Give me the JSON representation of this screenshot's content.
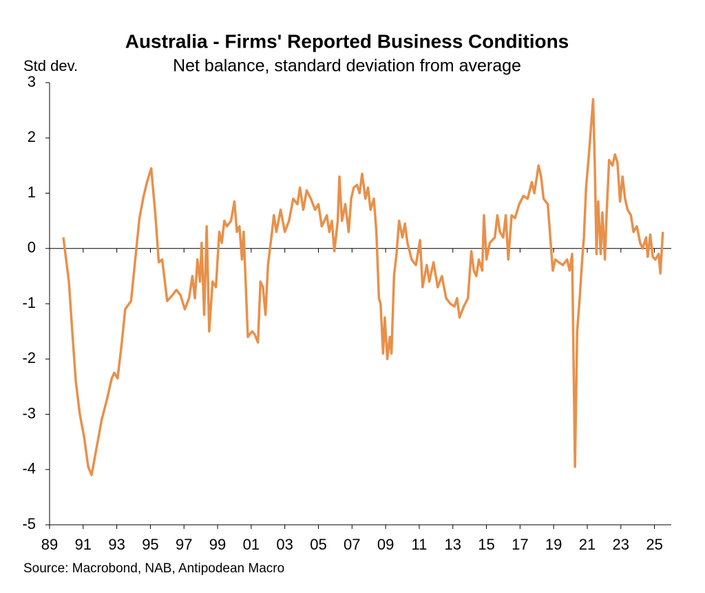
{
  "chart_data": {
    "type": "line",
    "title": "Australia - Firms' Reported Business Conditions",
    "subtitle": "Net balance, standard deviation from average",
    "y_label": "Std dev.",
    "source": "Source: Macrobond, NAB, Antipodean Macro",
    "x": [
      1989.82,
      1990.15,
      1990.35,
      1990.56,
      1990.8,
      1991.05,
      1991.3,
      1991.5,
      1991.8,
      1992.1,
      1992.4,
      1992.7,
      1992.85,
      1993.05,
      1993.3,
      1993.5,
      1993.85,
      1994.1,
      1994.35,
      1994.6,
      1994.8,
      1995.05,
      1995.3,
      1995.5,
      1995.7,
      1996.0,
      1996.3,
      1996.55,
      1996.8,
      1997.05,
      1997.3,
      1997.5,
      1997.65,
      1997.8,
      1997.95,
      1998.05,
      1998.2,
      1998.35,
      1998.5,
      1998.7,
      1998.9,
      1999.1,
      1999.25,
      1999.4,
      1999.55,
      1999.8,
      2000.0,
      2000.15,
      2000.3,
      2000.45,
      2000.55,
      2000.8,
      2001.05,
      2001.2,
      2001.4,
      2001.55,
      2001.7,
      2001.85,
      2002.0,
      2002.2,
      2002.35,
      2002.5,
      2002.75,
      2003.0,
      2003.25,
      2003.5,
      2003.75,
      2003.9,
      2004.1,
      2004.3,
      2004.55,
      2004.8,
      2005.0,
      2005.2,
      2005.5,
      2005.65,
      2005.8,
      2005.95,
      2006.15,
      2006.25,
      2006.4,
      2006.6,
      2006.8,
      2006.95,
      2007.1,
      2007.3,
      2007.45,
      2007.6,
      2007.8,
      2007.95,
      2008.1,
      2008.3,
      2008.45,
      2008.6,
      2008.7,
      2008.85,
      2008.95,
      2009.1,
      2009.25,
      2009.35,
      2009.5,
      2009.65,
      2009.8,
      2010.0,
      2010.15,
      2010.3,
      2010.55,
      2010.8,
      2011.05,
      2011.2,
      2011.45,
      2011.6,
      2011.85,
      2012.1,
      2012.35,
      2012.6,
      2012.85,
      2013.1,
      2013.25,
      2013.4,
      2013.65,
      2013.9,
      2014.1,
      2014.25,
      2014.4,
      2014.55,
      2014.75,
      2014.85,
      2015.0,
      2015.2,
      2015.5,
      2015.65,
      2015.8,
      2016.0,
      2016.15,
      2016.3,
      2016.5,
      2016.7,
      2016.95,
      2017.2,
      2017.45,
      2017.7,
      2017.85,
      2018.1,
      2018.25,
      2018.4,
      2018.65,
      2018.85,
      2018.95,
      2019.1,
      2019.3,
      2019.55,
      2019.8,
      2019.95,
      2020.1,
      2020.27,
      2020.4,
      2020.55,
      2020.7,
      2020.8,
      2020.93,
      2021.1,
      2021.2,
      2021.35,
      2021.45,
      2021.55,
      2021.65,
      2021.8,
      2021.9,
      2022.05,
      2022.15,
      2022.3,
      2022.5,
      2022.65,
      2022.8,
      2022.95,
      2023.1,
      2023.25,
      2023.4,
      2023.6,
      2023.75,
      2023.95,
      2024.15,
      2024.3,
      2024.5,
      2024.6,
      2024.75,
      2024.9,
      2025.05,
      2025.25,
      2025.35,
      2025.5
    ],
    "series": [
      {
        "name": "Business conditions",
        "color": "#e8904a",
        "values": [
          0.2,
          -0.6,
          -1.5,
          -2.4,
          -3.0,
          -3.4,
          -3.95,
          -4.1,
          -3.6,
          -3.1,
          -2.75,
          -2.35,
          -2.25,
          -2.35,
          -1.7,
          -1.1,
          -0.95,
          -0.2,
          0.55,
          0.95,
          1.2,
          1.45,
          0.6,
          -0.25,
          -0.2,
          -0.95,
          -0.85,
          -0.75,
          -0.85,
          -1.1,
          -0.9,
          -0.5,
          -0.9,
          -0.2,
          -0.6,
          0.1,
          -1.2,
          0.4,
          -1.5,
          -0.6,
          -0.7,
          0.3,
          0.1,
          0.5,
          0.4,
          0.5,
          0.85,
          0.3,
          0.4,
          -0.2,
          0.3,
          -1.6,
          -1.5,
          -1.55,
          -1.7,
          -0.6,
          -0.7,
          -1.2,
          -0.3,
          0.2,
          0.6,
          0.3,
          0.7,
          0.3,
          0.5,
          0.9,
          0.8,
          1.1,
          0.7,
          1.05,
          0.9,
          0.7,
          0.8,
          0.4,
          0.6,
          0.3,
          0.5,
          -0.05,
          0.5,
          1.3,
          0.5,
          0.8,
          0.3,
          0.9,
          1.1,
          1.15,
          1.0,
          1.35,
          0.9,
          1.1,
          0.7,
          0.9,
          0.3,
          -0.9,
          -1.0,
          -1.9,
          -1.25,
          -2.0,
          -1.6,
          -1.9,
          -0.5,
          -0.1,
          0.5,
          0.2,
          0.45,
          0.1,
          -0.2,
          -0.3,
          0.15,
          -0.7,
          -0.3,
          -0.6,
          -0.25,
          -0.7,
          -0.5,
          -0.9,
          -1.0,
          -1.05,
          -0.9,
          -1.25,
          -1.05,
          -0.9,
          -0.05,
          -0.4,
          -0.5,
          -0.2,
          -0.4,
          0.6,
          -0.2,
          0.1,
          0.2,
          0.6,
          0.3,
          0.2,
          0.6,
          -0.2,
          0.6,
          0.55,
          0.8,
          0.95,
          0.9,
          1.2,
          1.0,
          1.5,
          1.3,
          0.9,
          0.8,
          0.0,
          -0.4,
          -0.2,
          -0.25,
          -0.3,
          -0.2,
          -0.4,
          -0.1,
          -3.95,
          -1.5,
          -0.9,
          -0.2,
          0.2,
          1.1,
          1.7,
          2.1,
          2.7,
          1.5,
          -0.1,
          0.85,
          -0.1,
          0.65,
          -0.2,
          0.6,
          1.6,
          1.5,
          1.7,
          1.55,
          0.85,
          1.3,
          0.9,
          0.7,
          0.6,
          0.3,
          0.4,
          0.1,
          0.0,
          0.2,
          -0.15,
          0.25,
          -0.15,
          -0.2,
          -0.1,
          -0.45,
          0.3
        ]
      }
    ],
    "xlim": [
      1989,
      2026
    ],
    "xticks": [
      {
        "value": 1989,
        "label": "89"
      },
      {
        "value": 1991,
        "label": "91"
      },
      {
        "value": 1993,
        "label": "93"
      },
      {
        "value": 1995,
        "label": "95"
      },
      {
        "value": 1997,
        "label": "97"
      },
      {
        "value": 1999,
        "label": "99"
      },
      {
        "value": 2001,
        "label": "01"
      },
      {
        "value": 2003,
        "label": "03"
      },
      {
        "value": 2005,
        "label": "05"
      },
      {
        "value": 2007,
        "label": "07"
      },
      {
        "value": 2009,
        "label": "09"
      },
      {
        "value": 2011,
        "label": "11"
      },
      {
        "value": 2013,
        "label": "13"
      },
      {
        "value": 2015,
        "label": "15"
      },
      {
        "value": 2017,
        "label": "17"
      },
      {
        "value": 2019,
        "label": "19"
      },
      {
        "value": 2021,
        "label": "21"
      },
      {
        "value": 2023,
        "label": "23"
      },
      {
        "value": 2025,
        "label": "25"
      }
    ],
    "ylim": [
      -5,
      3
    ],
    "yticks": [
      3,
      2,
      1,
      0,
      -1,
      -2,
      -3,
      -4,
      -5
    ]
  }
}
